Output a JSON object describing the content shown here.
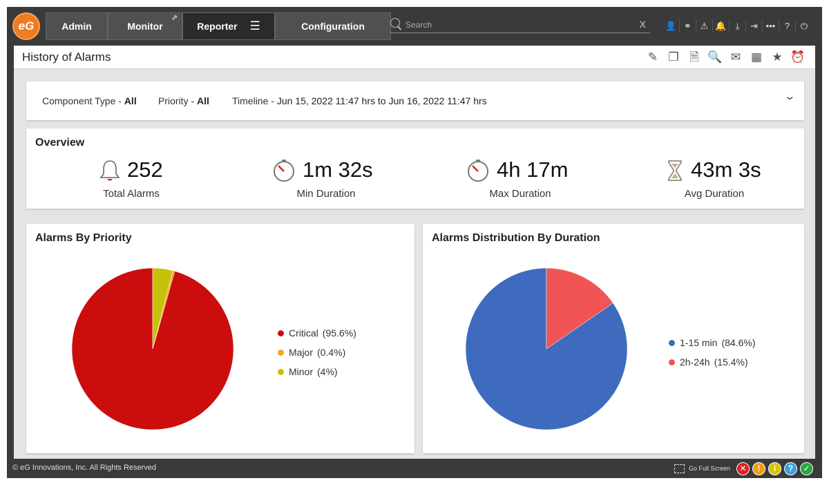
{
  "app": {
    "logo_text": "eG"
  },
  "nav": {
    "admin": "Admin",
    "monitor": "Monitor",
    "reporter": "Reporter",
    "configuration": "Configuration"
  },
  "search": {
    "placeholder": "Search",
    "clear": "X"
  },
  "toolbar_icons": [
    "user-icon",
    "link-icon",
    "alarm-flag-icon",
    "bell-icon",
    "download-icon",
    "sign-in-icon",
    "more-icon",
    "help-icon",
    "power-icon"
  ],
  "page": {
    "title": "History of Alarms"
  },
  "action_icons": [
    "edit-report-icon",
    "copy-report-icon",
    "pdf-icon",
    "print-preview-icon",
    "mail-icon",
    "excel-icon",
    "star-icon",
    "alarm-clock-icon"
  ],
  "filters": {
    "component_type": {
      "label": "Component Type - ",
      "value": "All"
    },
    "priority": {
      "label": "Priority - ",
      "value": "All"
    },
    "timeline": {
      "label": "Timeline - ",
      "value": "Jun 15, 2022 11:47 hrs to Jun 16, 2022 11:47 hrs"
    }
  },
  "overview": {
    "title": "Overview",
    "total": {
      "value": "252",
      "label": "Total Alarms"
    },
    "min": {
      "value": "1m 32s",
      "label": "Min Duration"
    },
    "max": {
      "value": "4h 17m",
      "label": "Max Duration"
    },
    "avg": {
      "value": "43m 3s",
      "label": "Avg Duration"
    }
  },
  "chart_data": [
    {
      "type": "pie",
      "title": "Alarms By Priority",
      "slices": [
        {
          "label": "Critical",
          "pct_label": "(95.6%)",
          "value": 95.6,
          "color": "#cc0d0d"
        },
        {
          "label": "Major",
          "pct_label": "(0.4%)",
          "value": 0.4,
          "color": "#f5a623"
        },
        {
          "label": "Minor",
          "pct_label": "(4%)",
          "value": 4,
          "color": "#c8c10a"
        }
      ],
      "legend": "right"
    },
    {
      "type": "pie",
      "title": "Alarms Distribution By Duration",
      "slices": [
        {
          "label": "1-15 min",
          "pct_label": "(84.6%)",
          "value": 84.6,
          "color": "#3f6bbf"
        },
        {
          "label": "2h-24h",
          "pct_label": "(15.4%)",
          "value": 15.4,
          "color": "#f05454"
        }
      ],
      "legend": "right"
    }
  ],
  "footer": {
    "copyright": "© eG Innovations, Inc. All Rights Reserved",
    "fullscreen": "Go Full Screen",
    "status_icons": [
      {
        "name": "critical-status-icon",
        "glyph": "✕",
        "color": "#e02020"
      },
      {
        "name": "major-status-icon",
        "glyph": "!",
        "color": "#f39c12"
      },
      {
        "name": "minor-status-icon",
        "glyph": "i",
        "color": "#d4c700"
      },
      {
        "name": "unknown-status-icon",
        "glyph": "?",
        "color": "#3aa0e0"
      },
      {
        "name": "normal-status-icon",
        "glyph": "✓",
        "color": "#28a745"
      }
    ]
  }
}
